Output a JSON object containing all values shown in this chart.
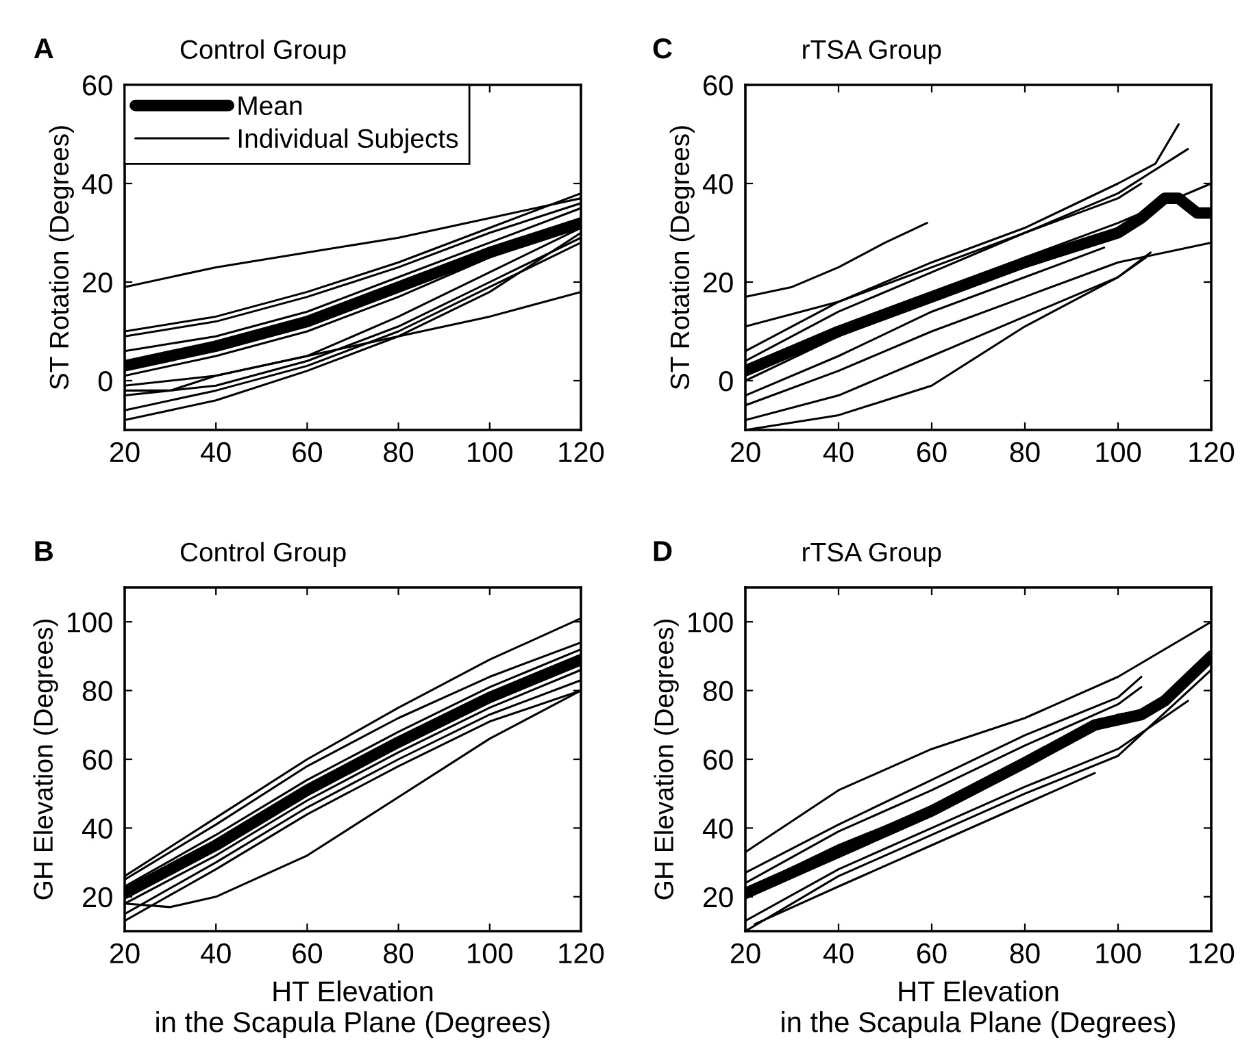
{
  "chart_data": [
    {
      "type": "line",
      "title": "Control Group",
      "ylabel": "ST Rotation (Degrees)",
      "annotations": [
        "A"
      ],
      "xlim": [
        20,
        120
      ],
      "xticks": [
        20,
        40,
        60,
        80,
        100,
        120
      ],
      "ylim": [
        -10,
        60
      ],
      "yticks": [
        0,
        20,
        40,
        60
      ],
      "grid": false,
      "legend": "top left",
      "marker": "none",
      "line_style": "solid",
      "series": [
        {
          "name": "Mean",
          "color": "#000000",
          "x": [
            20,
            40,
            60,
            80,
            100,
            120
          ],
          "values": [
            3,
            7,
            12,
            19,
            26,
            32
          ]
        },
        {
          "name": "Individual Subjects",
          "color": "#000000",
          "x": [
            20,
            40,
            60,
            80,
            100,
            120
          ],
          "values": [
            19,
            23,
            26,
            29,
            33,
            37
          ]
        },
        {
          "color": "#000000",
          "x": [
            20,
            40,
            60,
            80,
            100,
            120
          ],
          "values": [
            10,
            13,
            18,
            24,
            31,
            38
          ]
        },
        {
          "color": "#000000",
          "x": [
            20,
            40,
            60,
            80,
            100,
            120
          ],
          "values": [
            9,
            12,
            17,
            23,
            30,
            36
          ]
        },
        {
          "color": "#000000",
          "x": [
            20,
            40,
            60,
            80,
            100,
            120
          ],
          "values": [
            6,
            9,
            14,
            21,
            28,
            35
          ]
        },
        {
          "color": "#000000",
          "x": [
            20,
            40,
            60,
            80,
            100,
            120
          ],
          "values": [
            1,
            5,
            10,
            17,
            25,
            33
          ]
        },
        {
          "color": "#000000",
          "x": [
            20,
            30,
            40,
            60,
            80,
            100,
            120
          ],
          "values": [
            -2,
            -2,
            1,
            5,
            13,
            22,
            31
          ]
        },
        {
          "color": "#000000",
          "x": [
            20,
            40,
            60,
            80,
            100,
            120
          ],
          "values": [
            -3,
            -1,
            4,
            11,
            20,
            29
          ]
        },
        {
          "color": "#000000",
          "x": [
            20,
            40,
            60,
            80,
            100,
            120
          ],
          "values": [
            -6,
            -2,
            3,
            10,
            19,
            28
          ]
        },
        {
          "color": "#000000",
          "x": [
            20,
            40,
            60,
            80,
            100,
            120
          ],
          "values": [
            -8,
            -4,
            2,
            9,
            18,
            30
          ]
        },
        {
          "color": "#000000",
          "x": [
            20,
            40,
            60,
            80,
            100,
            120
          ],
          "values": [
            -1,
            1,
            5,
            9,
            13,
            18
          ]
        }
      ]
    },
    {
      "type": "line",
      "title": "rTSA Group",
      "ylabel": "ST Rotation (Degrees)",
      "annotations": [
        "C"
      ],
      "xlim": [
        20,
        120
      ],
      "xticks": [
        20,
        40,
        60,
        80,
        100,
        120
      ],
      "ylim": [
        -10,
        60
      ],
      "yticks": [
        0,
        20,
        40,
        60
      ],
      "grid": false,
      "marker": "none",
      "line_style": "solid",
      "series": [
        {
          "color": "#000000",
          "x": [
            20,
            40,
            60,
            80,
            100,
            105,
            110,
            113,
            117,
            120
          ],
          "values": [
            2,
            10,
            17,
            24,
            30,
            33,
            37,
            37,
            34,
            34
          ]
        },
        {
          "color": "#000000",
          "x": [
            20,
            30,
            40,
            50,
            59
          ],
          "values": [
            17,
            19,
            23,
            28,
            32
          ]
        },
        {
          "color": "#000000",
          "x": [
            20,
            40,
            60,
            80,
            100,
            105
          ],
          "values": [
            11,
            16,
            23,
            30,
            37,
            40
          ]
        },
        {
          "color": "#000000",
          "x": [
            20,
            40,
            60,
            80,
            100,
            108,
            113
          ],
          "values": [
            6,
            16,
            24,
            31,
            40,
            44,
            52
          ]
        },
        {
          "color": "#000000",
          "x": [
            20,
            40,
            60,
            80,
            100,
            115
          ],
          "values": [
            4,
            14,
            22,
            30,
            38,
            47
          ]
        },
        {
          "color": "#000000",
          "x": [
            20,
            40,
            60,
            80,
            100,
            120
          ],
          "values": [
            0,
            9,
            17,
            25,
            32,
            40
          ]
        },
        {
          "color": "#000000",
          "x": [
            20,
            40,
            60,
            80,
            97
          ],
          "values": [
            -3,
            5,
            14,
            21,
            27
          ]
        },
        {
          "color": "#000000",
          "x": [
            20,
            40,
            60,
            80,
            100,
            120
          ],
          "values": [
            -5,
            2,
            10,
            17,
            24,
            28
          ]
        },
        {
          "color": "#000000",
          "x": [
            20,
            40,
            60,
            80,
            100,
            106
          ],
          "values": [
            -8,
            -3,
            5,
            13,
            21,
            25
          ]
        },
        {
          "color": "#000000",
          "x": [
            20,
            40,
            60,
            80,
            100,
            107
          ],
          "values": [
            -10,
            -7,
            -1,
            11,
            21,
            26
          ]
        }
      ]
    },
    {
      "type": "line",
      "title": "Control Group",
      "xlabel": "HT Elevation\nin the Scapula Plane (Degrees)",
      "ylabel": "GH Elevation (Degrees)",
      "annotations": [
        "B"
      ],
      "xlim": [
        20,
        120
      ],
      "xticks": [
        20,
        40,
        60,
        80,
        100,
        120
      ],
      "ylim": [
        10,
        110
      ],
      "yticks": [
        20,
        40,
        60,
        80,
        100
      ],
      "grid": false,
      "marker": "none",
      "line_style": "solid",
      "series": [
        {
          "color": "#000000",
          "x": [
            20,
            40,
            60,
            80,
            100,
            120
          ],
          "values": [
            21,
            35,
            51,
            65,
            78,
            89
          ]
        },
        {
          "color": "#000000",
          "x": [
            20,
            40,
            60,
            80,
            100,
            120
          ],
          "values": [
            26,
            43,
            60,
            75,
            89,
            101
          ]
        },
        {
          "color": "#000000",
          "x": [
            20,
            40,
            60,
            80,
            100,
            120
          ],
          "values": [
            25,
            41,
            58,
            72,
            84,
            94
          ]
        },
        {
          "color": "#000000",
          "x": [
            20,
            40,
            60,
            80,
            100,
            120
          ],
          "values": [
            23,
            38,
            54,
            68,
            81,
            92
          ]
        },
        {
          "color": "#000000",
          "x": [
            20,
            40,
            60,
            80,
            100,
            120
          ],
          "values": [
            18,
            32,
            48,
            62,
            75,
            86
          ]
        },
        {
          "color": "#000000",
          "x": [
            20,
            40,
            60,
            80,
            100,
            120
          ],
          "values": [
            15,
            30,
            46,
            60,
            73,
            83
          ]
        },
        {
          "color": "#000000",
          "x": [
            20,
            40,
            60,
            80,
            100,
            120
          ],
          "values": [
            13,
            28,
            44,
            58,
            71,
            80
          ]
        },
        {
          "color": "#000000",
          "x": [
            20,
            30,
            40,
            60,
            80,
            100,
            120
          ],
          "values": [
            18,
            17,
            20,
            32,
            49,
            66,
            80
          ]
        }
      ]
    },
    {
      "type": "line",
      "title": "rTSA Group",
      "xlabel": "HT Elevation\nin the Scapula Plane (Degrees)",
      "ylabel": "GH Elevation (Degrees)",
      "annotations": [
        "D"
      ],
      "xlim": [
        20,
        120
      ],
      "xticks": [
        20,
        40,
        60,
        80,
        100,
        120
      ],
      "ylim": [
        10,
        110
      ],
      "yticks": [
        20,
        40,
        60,
        80,
        100
      ],
      "grid": false,
      "marker": "none",
      "line_style": "solid",
      "series": [
        {
          "color": "#000000",
          "x": [
            20,
            40,
            60,
            80,
            95,
            105,
            110,
            120
          ],
          "values": [
            21,
            33,
            45,
            59,
            70,
            73,
            77,
            90
          ]
        },
        {
          "color": "#000000",
          "x": [
            20,
            40,
            60,
            80,
            100,
            120
          ],
          "values": [
            33,
            51,
            63,
            72,
            84,
            100
          ]
        },
        {
          "color": "#000000",
          "x": [
            20,
            40,
            60,
            80,
            100,
            105
          ],
          "values": [
            27,
            41,
            54,
            67,
            78,
            84
          ]
        },
        {
          "color": "#000000",
          "x": [
            20,
            40,
            60,
            80,
            100,
            105
          ],
          "values": [
            24,
            39,
            51,
            64,
            76,
            81
          ]
        },
        {
          "color": "#000000",
          "x": [
            20,
            40,
            60,
            80,
            100,
            105
          ],
          "values": [
            22,
            35,
            46,
            60,
            73,
            74
          ]
        },
        {
          "color": "#000000",
          "x": [
            20,
            40,
            60,
            80,
            100,
            115
          ],
          "values": [
            13,
            28,
            40,
            52,
            63,
            77
          ]
        },
        {
          "color": "#000000",
          "x": [
            20,
            40,
            60,
            80,
            100,
            120
          ],
          "values": [
            10,
            26,
            38,
            50,
            61,
            86
          ]
        },
        {
          "color": "#000000",
          "x": [
            22,
            40,
            60,
            80,
            95
          ],
          "values": [
            12,
            23,
            35,
            47,
            56
          ]
        }
      ]
    }
  ]
}
